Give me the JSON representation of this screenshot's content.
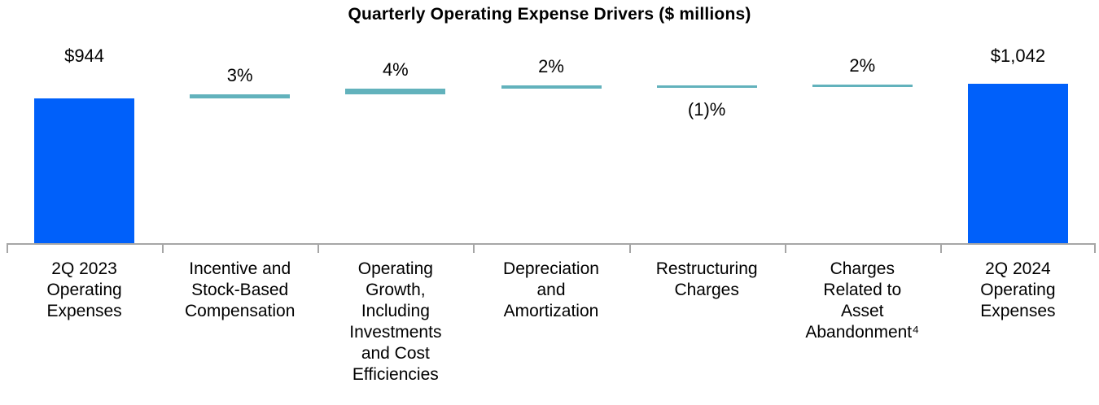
{
  "title": "Quarterly Operating Expense Drivers ($ millions)",
  "chart_data": {
    "type": "waterfall",
    "title": "Quarterly Operating Expense Drivers ($ millions)",
    "unit": "$ millions",
    "legend": "none",
    "gridlines": false,
    "baseline_axis_visible": true,
    "columns": [
      {
        "kind": "total",
        "label": "2Q 2023 Operating Expenses",
        "label_lines": [
          "2Q 2023",
          "Operating",
          "Expenses"
        ],
        "value": 944,
        "value_label": "$944"
      },
      {
        "kind": "delta",
        "label": "Incentive and Stock-Based Compensation",
        "label_lines": [
          "Incentive and",
          "Stock-Based",
          "Compensation"
        ],
        "pct_of_start": 3,
        "value_label": "3%"
      },
      {
        "kind": "delta",
        "label": "Operating Growth, Including Investments and Cost Efficiencies",
        "label_lines": [
          "Operating",
          "Growth,",
          "Including",
          "Investments",
          "and Cost",
          "Efficiencies"
        ],
        "pct_of_start": 4,
        "value_label": "4%"
      },
      {
        "kind": "delta",
        "label": "Depreciation and Amortization",
        "label_lines": [
          "Depreciation",
          "and",
          "Amortization"
        ],
        "pct_of_start": 2,
        "value_label": "2%"
      },
      {
        "kind": "delta",
        "label": "Restructuring Charges",
        "label_lines": [
          "Restructuring",
          "Charges"
        ],
        "pct_of_start": -1,
        "value_label": "(1)%"
      },
      {
        "kind": "delta",
        "label": "Charges Related to Asset Abandonment⁴",
        "label_lines": [
          "Charges",
          "Related to",
          "Asset",
          "Abandonment⁴"
        ],
        "pct_of_start": 2,
        "value_label": "2%"
      },
      {
        "kind": "total",
        "label": "2Q 2024 Operating Expenses",
        "label_lines": [
          "2Q 2024",
          "Operating",
          "Expenses"
        ],
        "value": 1042,
        "value_label": "$1,042"
      }
    ],
    "colors": {
      "total_bar": "#0060fa",
      "delta_bar": "#62b2bc",
      "axis": "#a6a6a6",
      "text": "#000000"
    }
  }
}
